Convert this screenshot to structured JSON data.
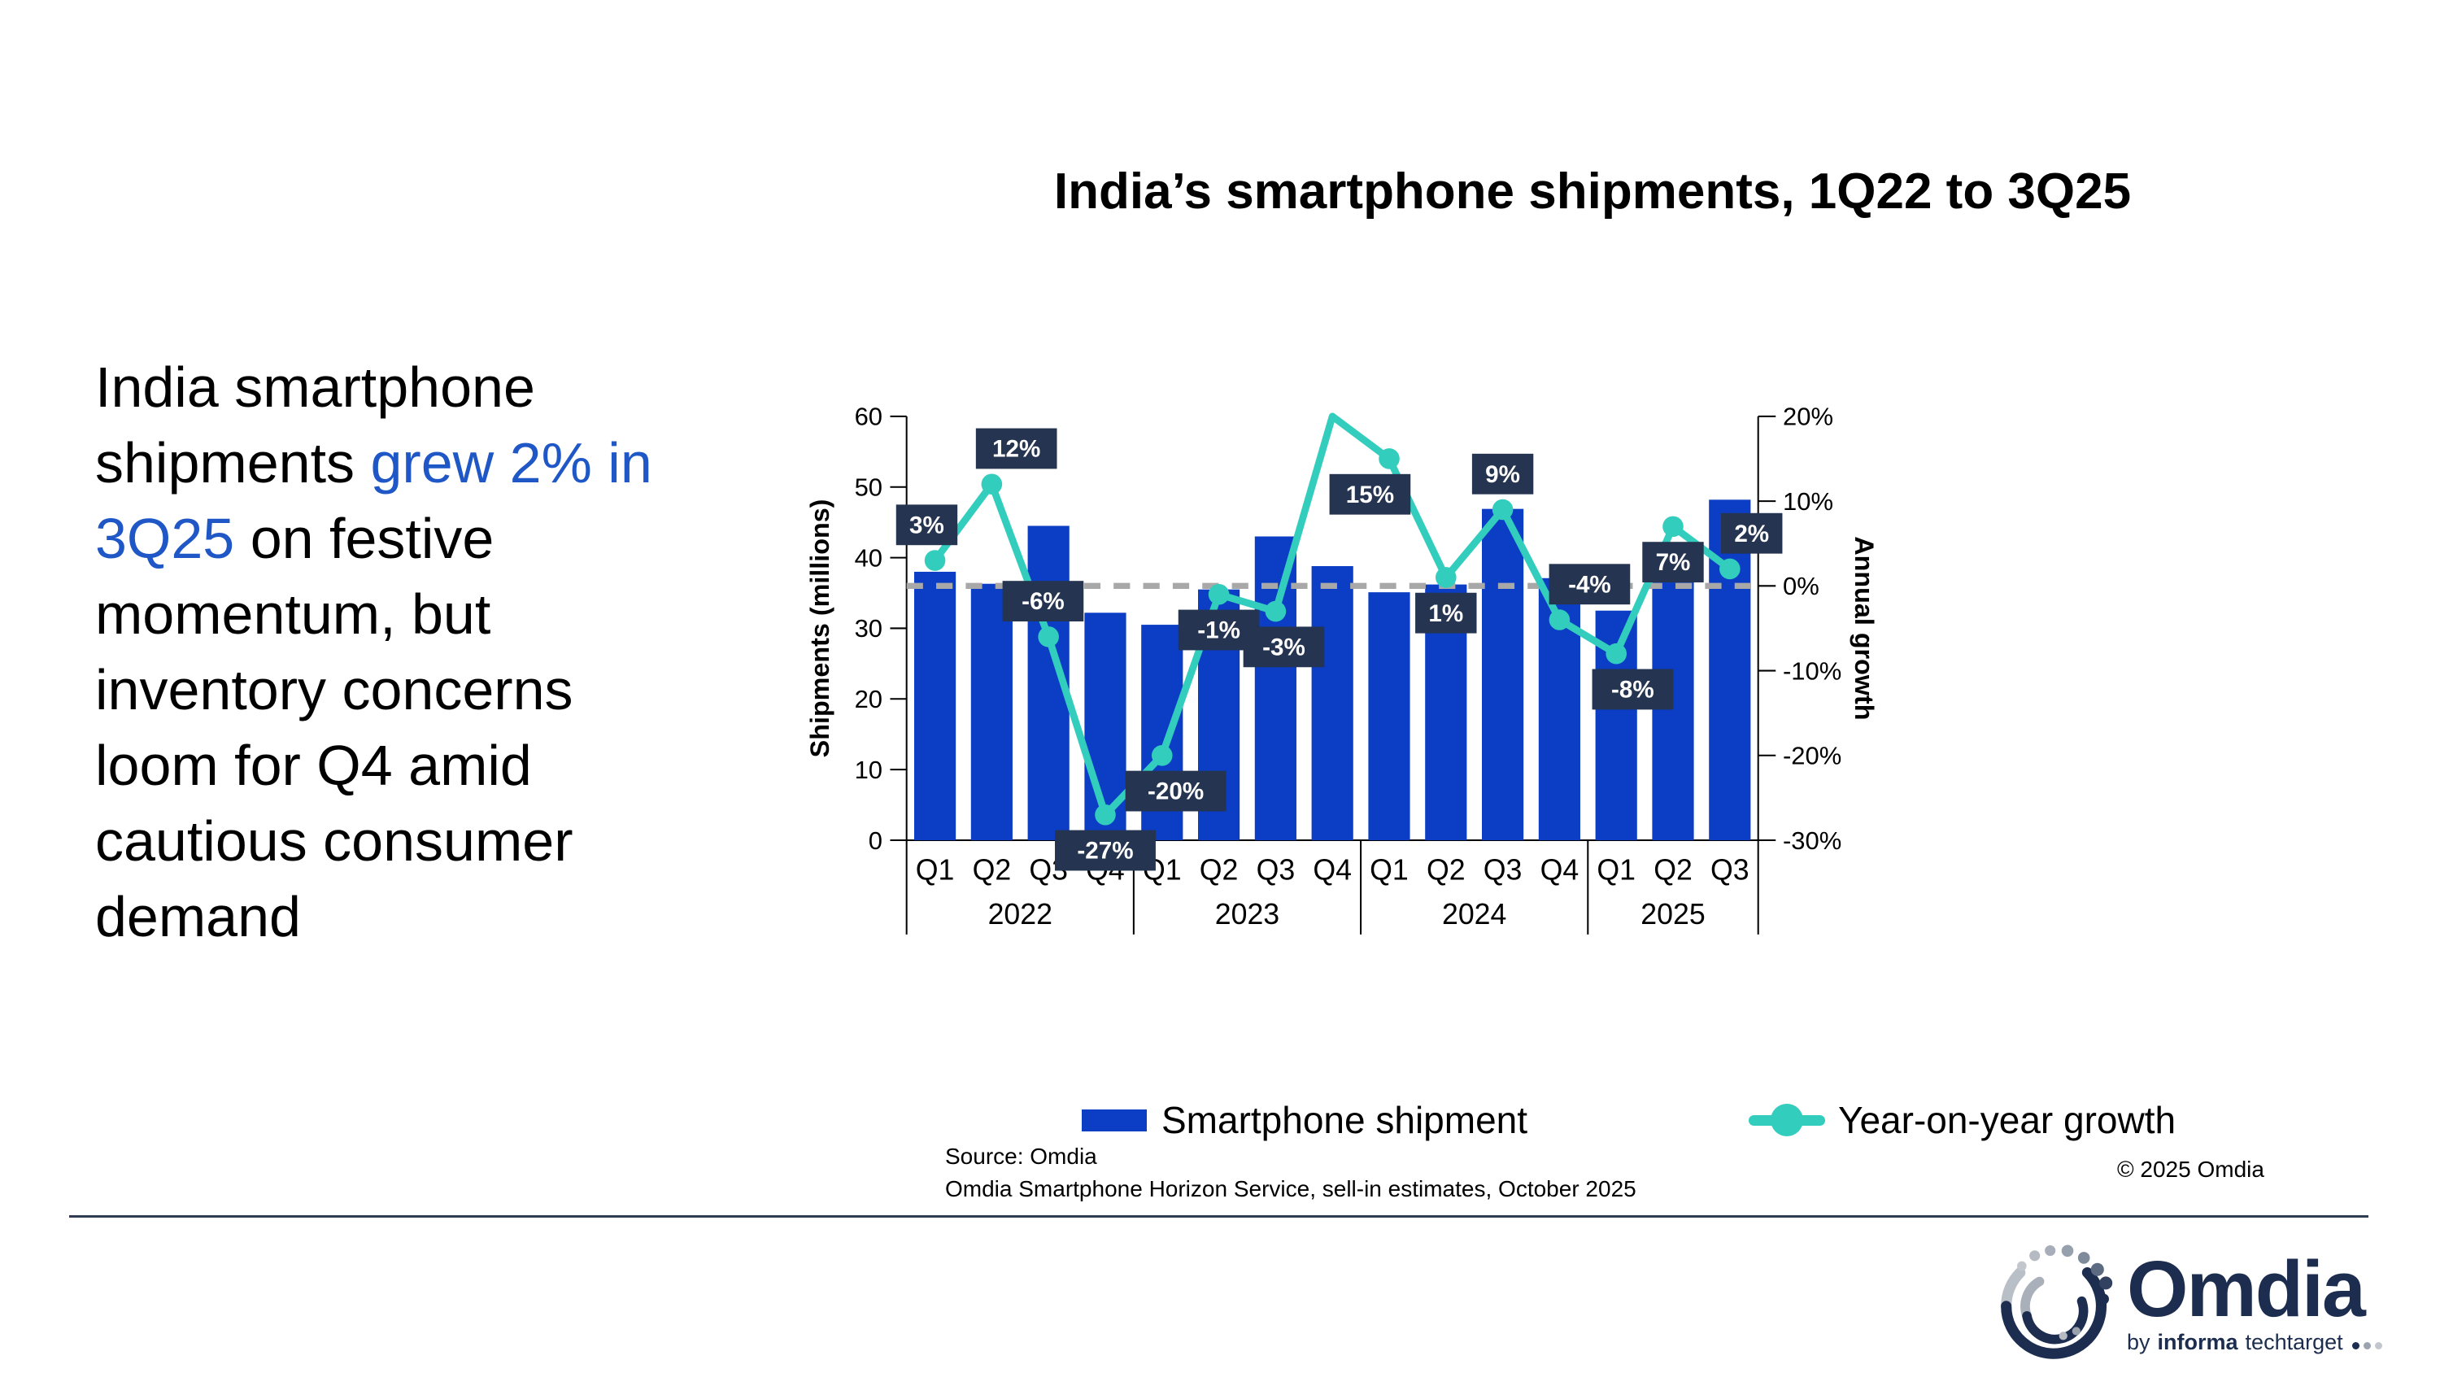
{
  "headline": {
    "accent_color": "#1F57C7",
    "lines": [
      [
        {
          "t": "India smartphone",
          "b": false
        }
      ],
      [
        {
          "t": "shipments ",
          "b": false
        },
        {
          "t": "grew 2% in",
          "b": true
        }
      ],
      [
        {
          "t": "3Q25",
          "b": true
        },
        {
          "t": " on festive",
          "b": false
        }
      ],
      [
        {
          "t": "momentum, but",
          "b": false
        }
      ],
      [
        {
          "t": "inventory concerns",
          "b": false
        }
      ],
      [
        {
          "t": "loom for Q4 amid",
          "b": false
        }
      ],
      [
        {
          "t": "cautious consumer",
          "b": false
        }
      ],
      [
        {
          "t": "demand",
          "b": false
        }
      ]
    ]
  },
  "chart_data": {
    "type": "bar",
    "title": "India’s smartphone shipments, 1Q22 to 3Q25",
    "categories": [
      "Q1",
      "Q2",
      "Q3",
      "Q4",
      "Q1",
      "Q2",
      "Q3",
      "Q4",
      "Q1",
      "Q2",
      "Q3",
      "Q4",
      "Q1",
      "Q2",
      "Q3"
    ],
    "year_groups": [
      {
        "label": "2022",
        "quarters": 4
      },
      {
        "label": "2023",
        "quarters": 4
      },
      {
        "label": "2024",
        "quarters": 4
      },
      {
        "label": "2025",
        "quarters": 3
      }
    ],
    "series": [
      {
        "name": "Smartphone shipment",
        "type": "bar",
        "axis": "left",
        "color": "#0B3EC4",
        "values": [
          38,
          36.3,
          44.5,
          32.2,
          30.5,
          35.5,
          43,
          38.8,
          35.1,
          36.2,
          46.9,
          37.1,
          32.5,
          37.7,
          48.2
        ]
      },
      {
        "name": "Year-on-year growth",
        "type": "line",
        "axis": "right",
        "color": "#32CDBD",
        "values": [
          3,
          12,
          -6,
          -27,
          -20,
          -1,
          -3,
          20,
          15,
          1,
          9,
          -4,
          -8,
          7,
          2
        ],
        "data_labels": [
          "3%",
          "12%",
          "-6%",
          "-27%",
          "-20%",
          "-1%",
          "-3%",
          "",
          "15%",
          "1%",
          "9%",
          "-4%",
          "-8%",
          "7%",
          "2%"
        ],
        "label_positions": [
          "above",
          "above",
          "above",
          "below",
          "below",
          "below",
          "below",
          "none",
          "below",
          "below",
          "above",
          "above",
          "below",
          "below",
          "above"
        ],
        "label_dx": [
          -15,
          45,
          -10,
          0,
          25,
          0,
          15,
          0,
          -35,
          0,
          0,
          55,
          30,
          0,
          40
        ],
        "marker_skip_index": 7
      }
    ],
    "left_axis": {
      "label": "Shipments (millions)",
      "min": 0,
      "max": 60,
      "step": 10
    },
    "right_axis": {
      "label": "Annual growth",
      "min": -30,
      "max": 20,
      "step": 10,
      "suffix": "%"
    },
    "zero_line": {
      "style": "dashed",
      "color": "#A8A8A8"
    },
    "label_box_color": "#253450",
    "label_text_color": "#FFFFFF",
    "legend_position": "bottom"
  },
  "footer": {
    "source_line1": "Source: Omdia",
    "source_line2": "Omdia Smartphone Horizon Service, sell-in estimates, October 2025",
    "copyright": "© 2025 Omdia"
  },
  "logo": {
    "wordmark": "Omdia",
    "byline_by": "by",
    "byline_informa": "informa",
    "byline_techtarget": "techtarget",
    "navy": "#1C2D4F"
  }
}
